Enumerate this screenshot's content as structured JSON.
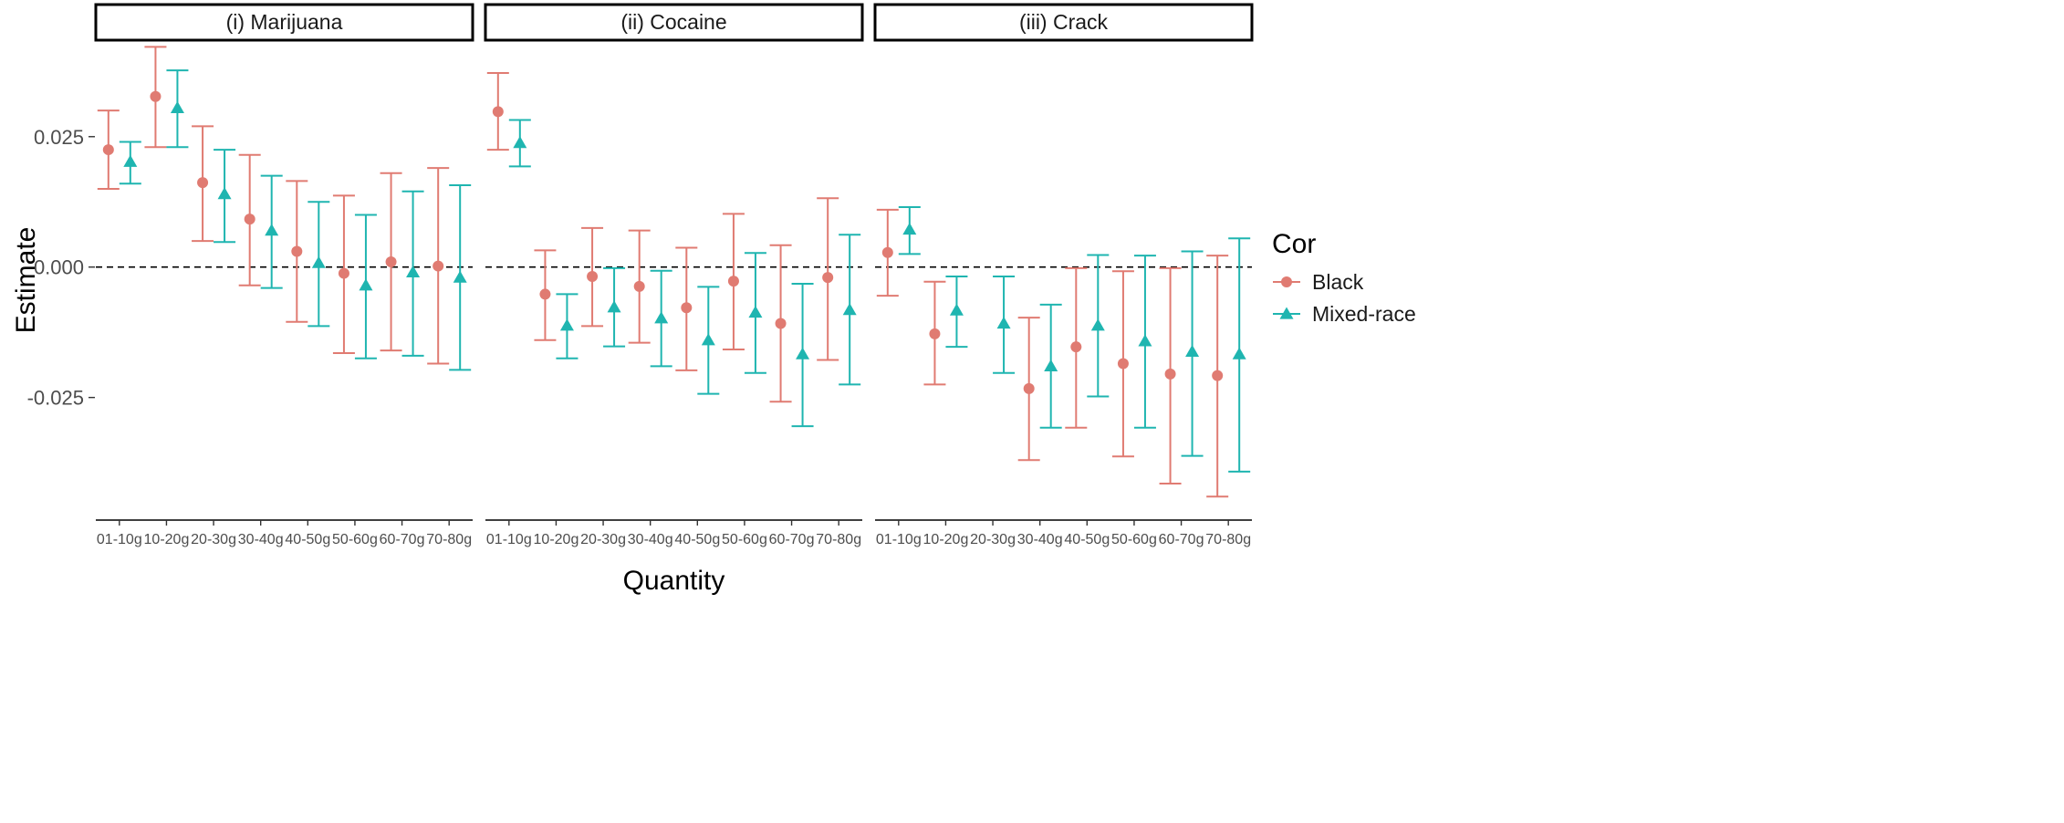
{
  "chart_data": {
    "type": "scatter",
    "variant": "point-range faceted",
    "xlabel": "Quantity",
    "ylabel": "Estimate",
    "ylim": [
      -0.0485,
      0.0435
    ],
    "yticks": [
      -0.025,
      0.0,
      0.025
    ],
    "ytick_labels": [
      "-0.025",
      "0.000",
      "0.025"
    ],
    "reference_line": 0,
    "grid": false,
    "categories": [
      "01-10g",
      "10-20g",
      "20-30g",
      "30-40g",
      "40-50g",
      "50-60g",
      "60-70g",
      "70-80g"
    ],
    "legend": {
      "title": "Cor",
      "position": "right",
      "entries": [
        {
          "name": "Black",
          "color": "#e07b72",
          "shape": "circle"
        },
        {
          "name": "Mixed-race",
          "color": "#1fb5b0",
          "shape": "triangle"
        }
      ]
    },
    "panels": [
      {
        "title": "(i) Marijuana",
        "series": [
          {
            "name": "Black",
            "estimate": [
              0.0225,
              0.0327,
              0.0162,
              0.0092,
              0.003,
              -0.0012,
              0.001,
              0.0002
            ],
            "lower": [
              0.015,
              0.023,
              0.005,
              -0.0035,
              -0.0105,
              -0.0165,
              -0.016,
              -0.0185
            ],
            "upper": [
              0.03,
              0.0422,
              0.027,
              0.0215,
              0.0165,
              0.0137,
              0.018,
              0.019
            ]
          },
          {
            "name": "Mixed-race",
            "estimate": [
              0.0202,
              0.0305,
              0.014,
              0.007,
              0.0008,
              -0.0035,
              -0.001,
              -0.002
            ],
            "lower": [
              0.016,
              0.023,
              0.0048,
              -0.004,
              -0.0113,
              -0.0175,
              -0.017,
              -0.0197
            ],
            "upper": [
              0.024,
              0.0377,
              0.0225,
              0.0175,
              0.0125,
              0.01,
              0.0145,
              0.0157
            ]
          }
        ]
      },
      {
        "title": "(ii) Cocaine",
        "series": [
          {
            "name": "Black",
            "estimate": [
              0.0298,
              -0.0052,
              -0.0018,
              -0.0037,
              -0.0078,
              -0.0027,
              -0.0108,
              -0.002
            ],
            "lower": [
              0.0225,
              -0.014,
              -0.0113,
              -0.0145,
              -0.0198,
              -0.0158,
              -0.0258,
              -0.0178
            ],
            "upper": [
              0.0372,
              0.0032,
              0.0075,
              0.007,
              0.0037,
              0.0102,
              0.0042,
              0.0132
            ]
          },
          {
            "name": "Mixed-race",
            "estimate": [
              0.0238,
              -0.0112,
              -0.0077,
              -0.0098,
              -0.014,
              -0.0087,
              -0.0167,
              -0.0082
            ],
            "lower": [
              0.0193,
              -0.0175,
              -0.0152,
              -0.019,
              -0.0243,
              -0.0203,
              -0.0305,
              -0.0225
            ],
            "upper": [
              0.0282,
              -0.0052,
              -0.0002,
              -0.0007,
              -0.0038,
              0.0027,
              -0.0032,
              0.0062
            ]
          }
        ]
      },
      {
        "title": "(iii) Crack",
        "series": [
          {
            "name": "Black",
            "estimate": [
              0.0028,
              -0.0128,
              null,
              -0.0233,
              -0.0153,
              -0.0185,
              -0.0205,
              -0.0208
            ],
            "lower": [
              -0.0055,
              -0.0225,
              null,
              -0.037,
              -0.0308,
              -0.0363,
              -0.0415,
              -0.044
            ],
            "upper": [
              0.011,
              -0.0028,
              null,
              -0.0097,
              -0.0002,
              -0.0008,
              -0.0002,
              0.0022
            ]
          },
          {
            "name": "Mixed-race",
            "estimate": [
              0.0072,
              -0.0083,
              -0.0108,
              -0.019,
              -0.0112,
              -0.0142,
              -0.0162,
              -0.0167
            ],
            "lower": [
              0.0025,
              -0.0153,
              -0.0203,
              -0.0308,
              -0.0248,
              -0.0308,
              -0.0362,
              -0.0392
            ],
            "upper": [
              0.0115,
              -0.0018,
              -0.0018,
              -0.0072,
              0.0023,
              0.0022,
              0.003,
              0.0055
            ]
          }
        ]
      }
    ]
  }
}
